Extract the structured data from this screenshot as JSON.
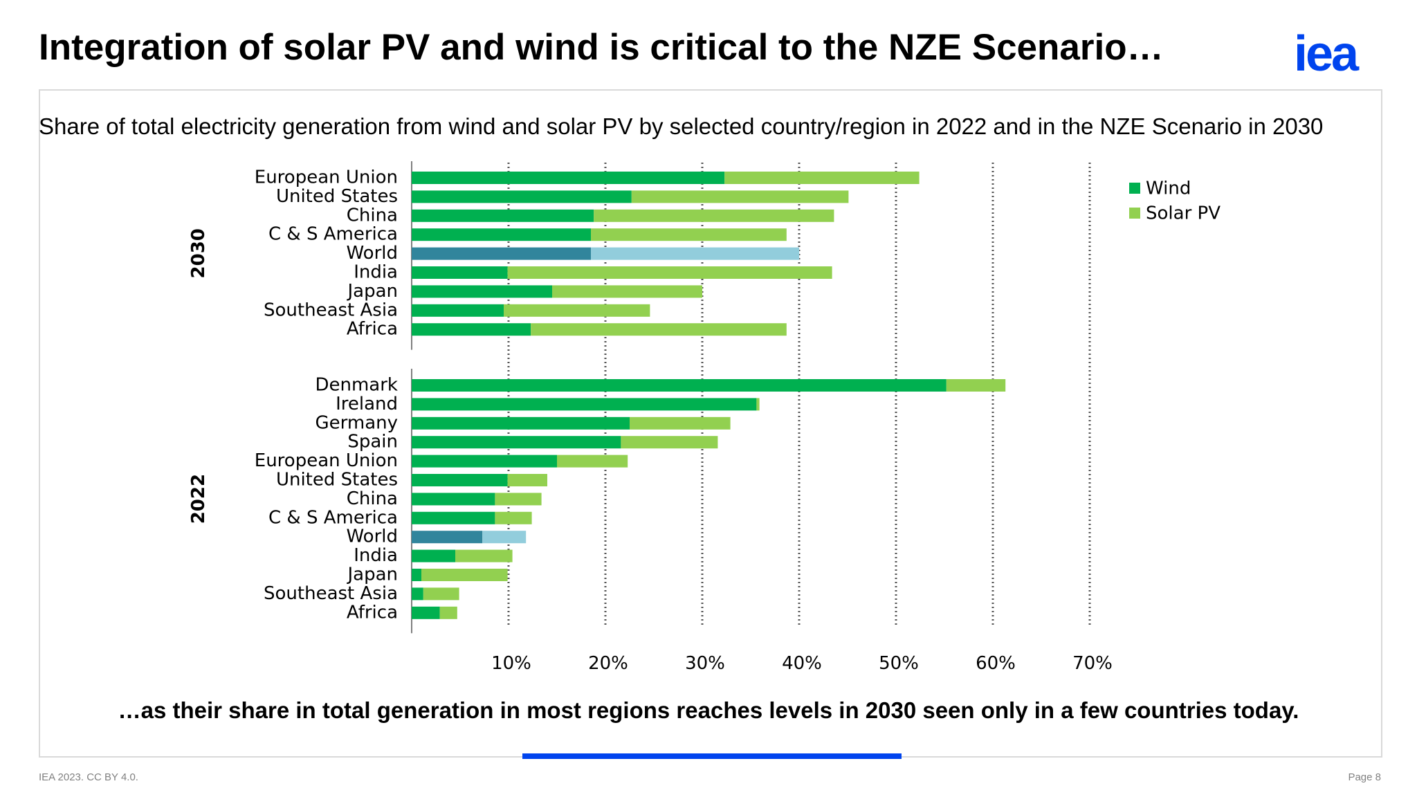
{
  "slide": {
    "title": "Integration of solar PV and wind is critical to the NZE Scenario…",
    "logo_text": "iea",
    "bottom_caption": "…as their share in total generation in most regions reaches levels in 2030 seen only in a few countries today.",
    "footer_left": "IEA 2023. CC BY 4.0.",
    "footer_right": "Page 8",
    "accent_color": "#0044ee"
  },
  "chart_data": {
    "type": "bar",
    "orientation": "horizontal",
    "stacked": true,
    "title": "Share of total electricity generation from wind and solar PV by selected country/region in 2022 and in the NZE Scenario in 2030",
    "xlim": [
      0,
      70
    ],
    "xticks": [
      "10%",
      "20%",
      "30%",
      "40%",
      "50%",
      "60%",
      "70%"
    ],
    "grid": "vertical dotted",
    "legend_position": "top-right",
    "legend": [
      {
        "name": "Wind",
        "color": "#00b050"
      },
      {
        "name": "Solar PV",
        "color": "#92d050"
      }
    ],
    "colors": {
      "wind": "#00b050",
      "solar": "#92d050",
      "world_wind": "#31859c",
      "world_solar": "#92cddc"
    },
    "groups": [
      {
        "label": "2030",
        "categories": [
          "European Union",
          "United States",
          "China",
          "C & S America",
          "World",
          "India",
          "Japan",
          "Southeast Asia",
          "Africa"
        ],
        "series": [
          {
            "name": "Wind",
            "values": [
              32.3,
              22.7,
              18.8,
              18.5,
              18.5,
              9.9,
              14.5,
              9.5,
              12.3
            ]
          },
          {
            "name": "Solar PV",
            "values": [
              20.1,
              22.4,
              24.8,
              20.2,
              21.5,
              33.5,
              15.5,
              15.1,
              26.4
            ]
          }
        ]
      },
      {
        "label": "2022",
        "categories": [
          "Denmark",
          "Ireland",
          "Germany",
          "Spain",
          "European Union",
          "United States",
          "China",
          "C & S America",
          "World",
          "India",
          "Japan",
          "Southeast Asia",
          "Africa"
        ],
        "series": [
          {
            "name": "Wind",
            "values": [
              55.2,
              35.6,
              22.5,
              21.6,
              15.0,
              9.9,
              8.6,
              8.6,
              7.3,
              4.5,
              1.0,
              1.2,
              2.9
            ]
          },
          {
            "name": "Solar PV",
            "values": [
              6.1,
              0.3,
              10.4,
              10.0,
              7.3,
              4.1,
              4.8,
              3.8,
              4.5,
              5.9,
              8.9,
              3.7,
              1.8
            ]
          }
        ]
      }
    ]
  }
}
